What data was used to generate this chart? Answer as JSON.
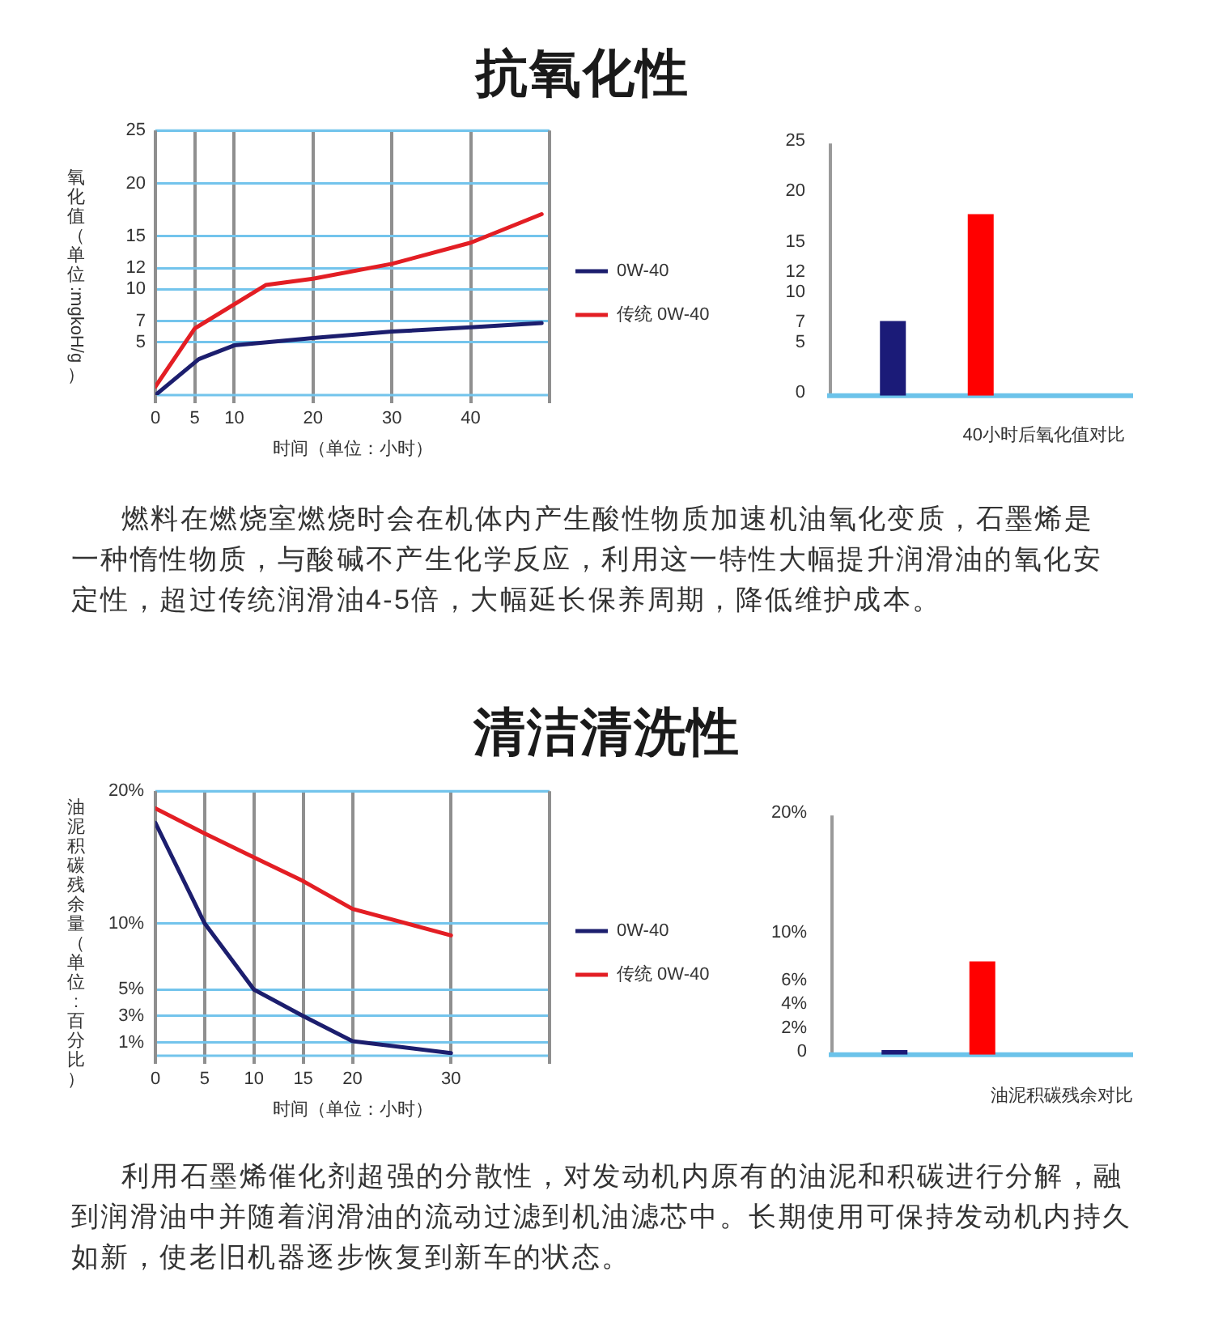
{
  "chart_data": [
    {
      "type": "line",
      "title": "抗氧化性",
      "xlabel": "时间（单位：小时）",
      "ylabel": "氧化值（单位:mgkoH/g）",
      "series": [
        {
          "name": "0W-40",
          "color": "#1c1e6e",
          "x": [
            0,
            5.5,
            10,
            20,
            30,
            40,
            49
          ],
          "values": [
            0,
            3.4,
            4.7,
            5.4,
            6.0,
            6.4,
            6.8
          ]
        },
        {
          "name": "传统 0W-40",
          "color": "#e31e24",
          "x": [
            0,
            5,
            14,
            20,
            30,
            40,
            49
          ],
          "values": [
            0.8,
            6.3,
            10.4,
            11.0,
            12.4,
            14.4,
            17.1
          ]
        }
      ],
      "xlim": [
        0,
        50
      ],
      "xticks": [
        0,
        5,
        10,
        20,
        30,
        40
      ],
      "ylim": [
        0,
        25
      ],
      "yticks": [
        5,
        7,
        10,
        12,
        15,
        20,
        25
      ],
      "grid": true,
      "legend": "right",
      "annotations": [
        "燃料在燃烧室燃烧时会在机体内产生酸性物质加速机油氧化变质，石墨烯是一种惰性物质，与酸碱不产生化学反应，利用这一特性大幅提升润滑油的氧化安定性，超过传统润滑油4-5倍，大幅延长保养周期，降低维护成本。"
      ]
    },
    {
      "type": "bar",
      "categories": [
        null,
        null
      ],
      "values": [
        7.4,
        18
      ],
      "colors": [
        "#1b1b78",
        "#ff0000"
      ],
      "ylim": [
        0,
        25
      ],
      "yticks": [
        0,
        5,
        7,
        10,
        12,
        15,
        20,
        25
      ],
      "xlabel": "40小时后氧化值对比"
    },
    {
      "type": "line",
      "title": "清洁清洗性",
      "xlabel": "时间（单位：小时）",
      "ylabel": "油泥积碳残余量（单位:百分比）",
      "series": [
        {
          "name": "0W-40",
          "color": "#1c1e6e",
          "x": [
            0,
            5,
            10,
            15,
            20,
            30
          ],
          "values": [
            17.6,
            10,
            5,
            3,
            1.1,
            0.2
          ]
        },
        {
          "name": "传统 0W-40",
          "color": "#e31e24",
          "x": [
            0,
            5,
            10,
            15,
            20,
            30
          ],
          "values": [
            18.7,
            16.8,
            15,
            13.2,
            11.1,
            9.1
          ]
        }
      ],
      "xlim": [
        0,
        40
      ],
      "xticks": [
        0,
        5,
        10,
        15,
        20,
        30
      ],
      "ylim": [
        0,
        20
      ],
      "yticks": [
        {
          "value": 1,
          "label": "1%"
        },
        {
          "value": 3,
          "label": "3%"
        },
        {
          "value": 5,
          "label": "5%"
        },
        {
          "value": 10,
          "label": "10%"
        },
        {
          "value": 20,
          "label": "20%"
        }
      ],
      "grid": true,
      "legend": "right",
      "annotations": [
        "利用石墨烯催化剂超强的分散性，对发动机内原有的油泥和积碳进行分解，融到润滑油中并随着润滑油的流动过滤到机油滤芯中。长期使用可保持发动机内持久如新，使老旧机器逐步恢复到新车的状态。"
      ]
    },
    {
      "type": "bar",
      "categories": [
        null,
        null
      ],
      "values": [
        0.4,
        7.8
      ],
      "colors": [
        "#1b1b78",
        "#ff0000"
      ],
      "ylim": [
        0,
        20
      ],
      "yticks": [
        0,
        {
          "value": 2,
          "label": "2%"
        },
        {
          "value": 4,
          "label": "4%"
        },
        {
          "value": 6,
          "label": "6%"
        },
        {
          "value": 10,
          "label": "10%"
        },
        {
          "value": 20,
          "label": "20%"
        }
      ],
      "xlabel": "油泥积碳残余对比"
    }
  ]
}
